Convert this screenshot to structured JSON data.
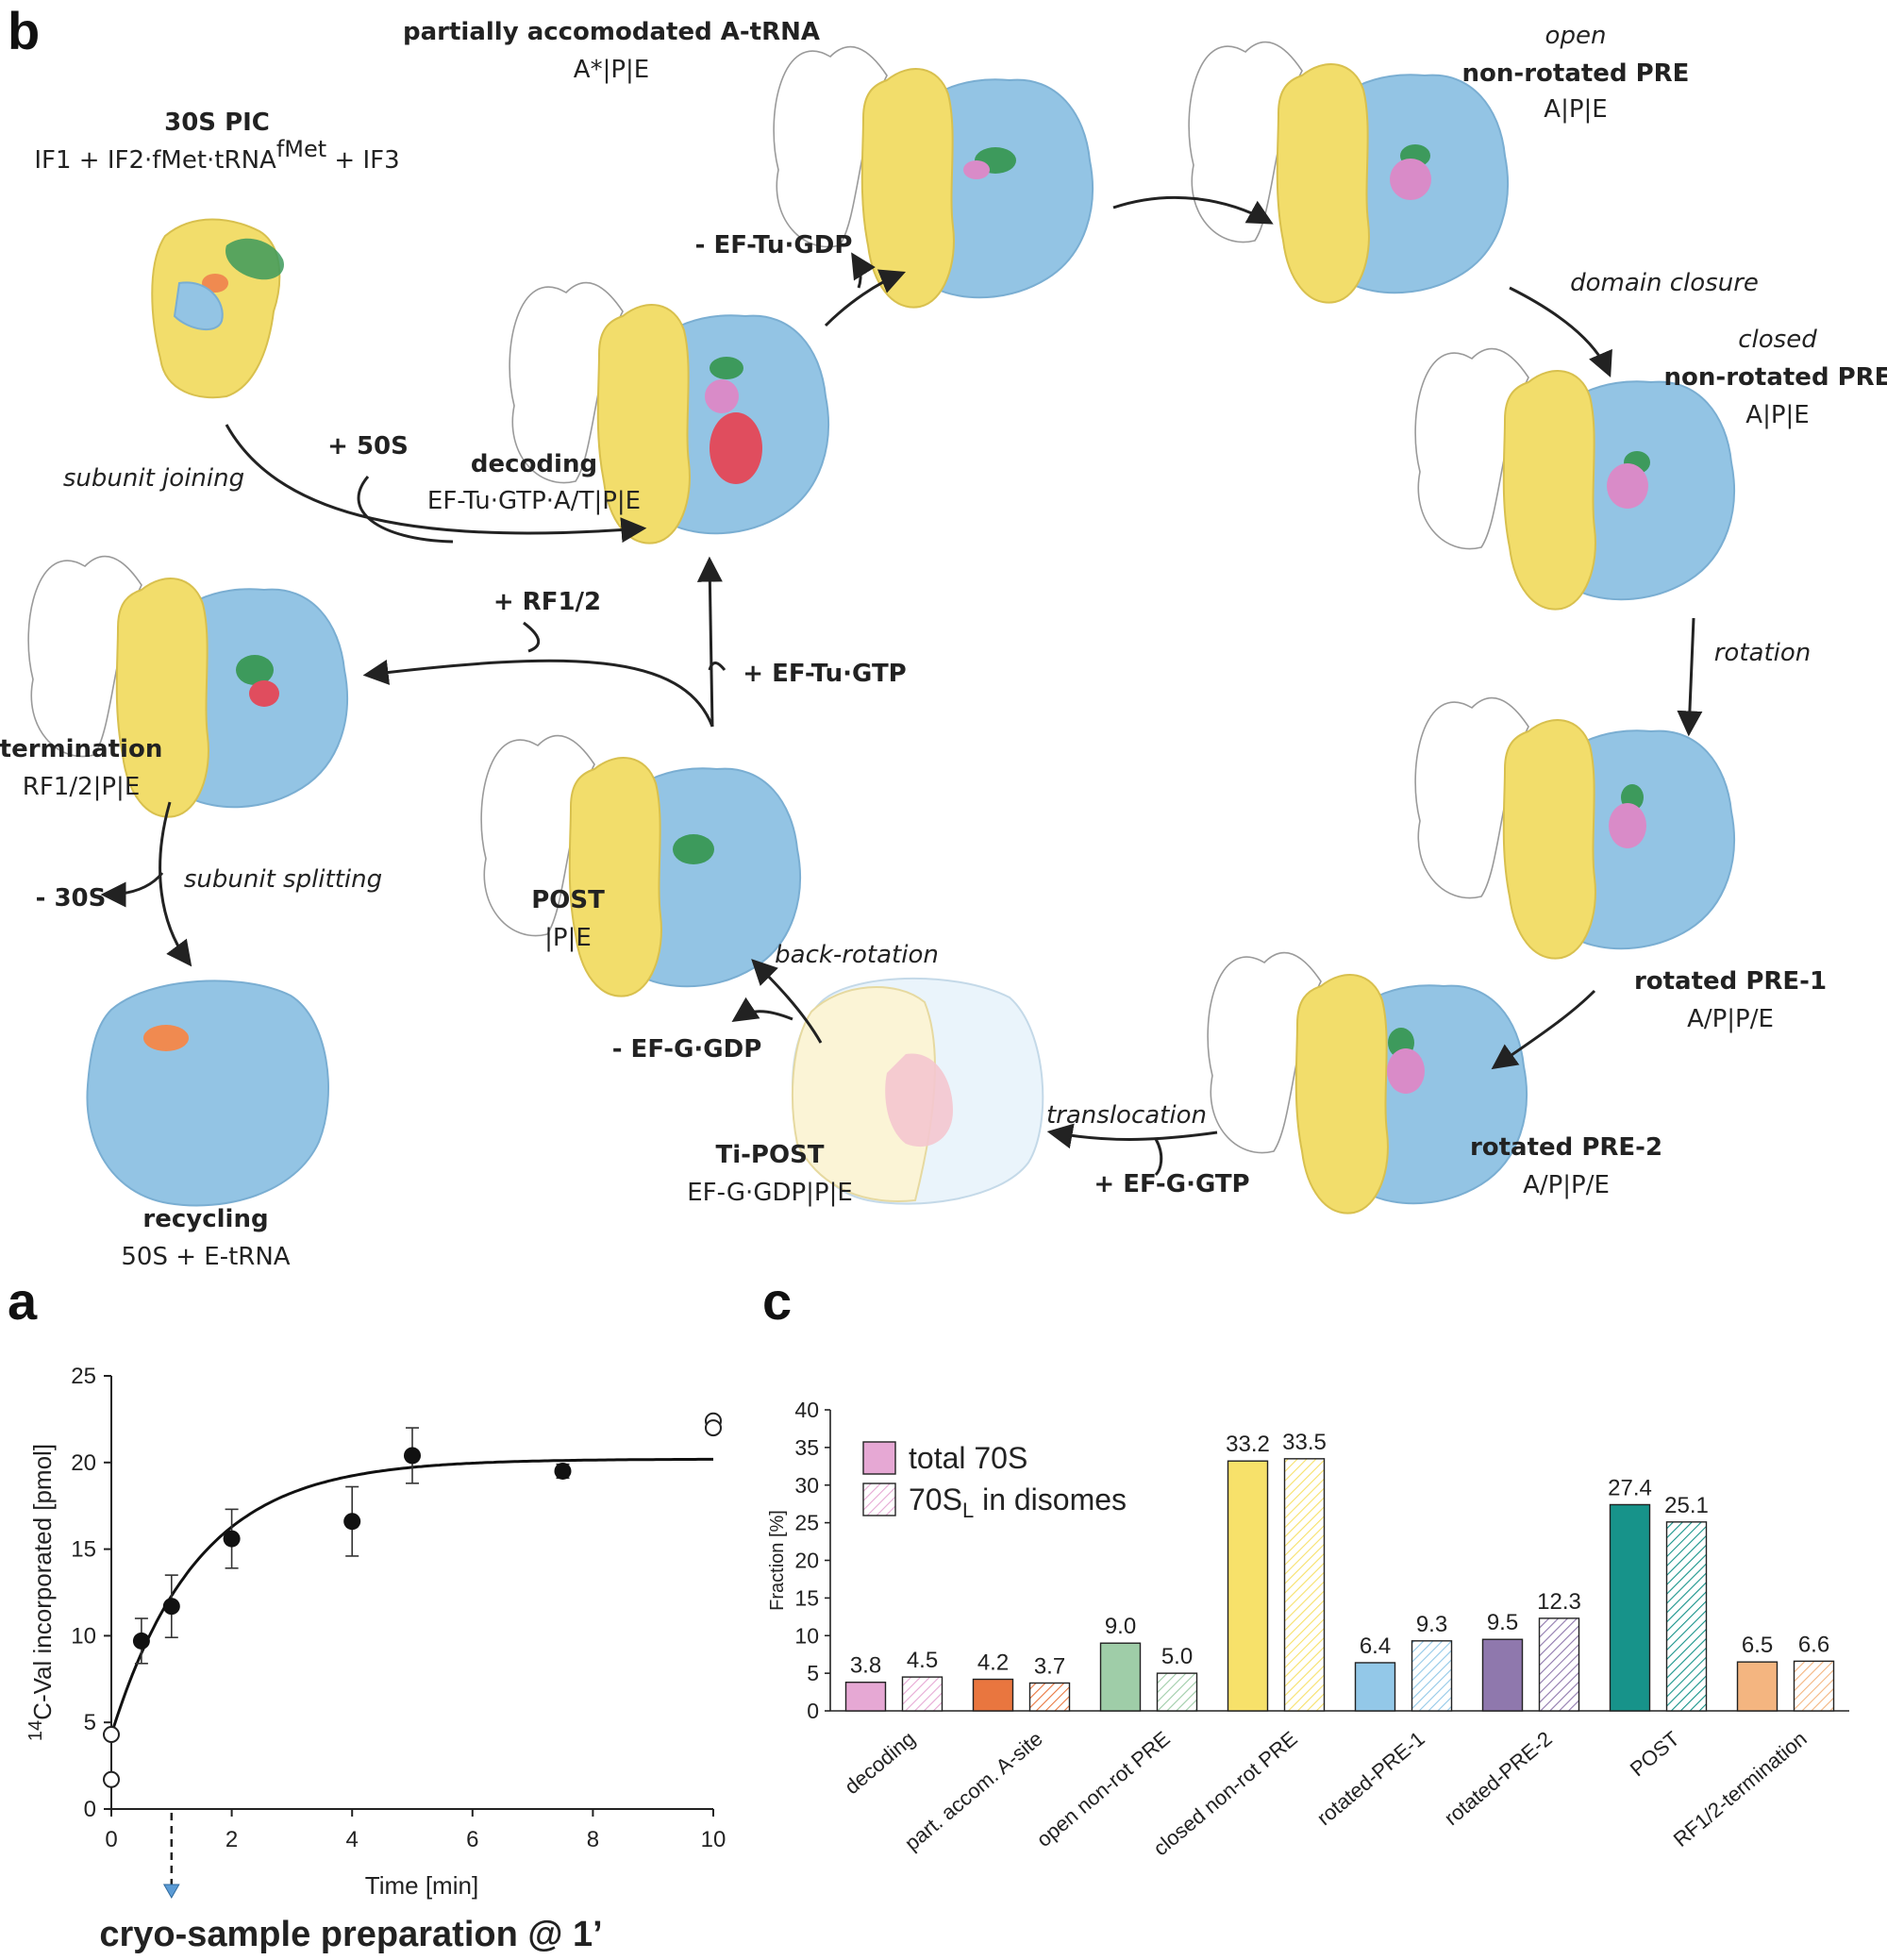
{
  "panel_letters": {
    "a": "a",
    "b": "b",
    "c": "c"
  },
  "colors": {
    "small_subunit_50S": "#f2dd6b",
    "large_subunit": "#93c4e4",
    "trna_p": "#3d9a5c",
    "trna_a": "#d98bc8",
    "ef_tu": "#e04d5e",
    "initiation_factor": "#f08a50",
    "outline": "#9a9a9a"
  },
  "states": {
    "pic": {
      "title": "30S PIC",
      "sub": "IF1 + IF2·fMet·tRNA",
      "sup": "fMet",
      "sub2": " + IF3"
    },
    "decoding": {
      "title": "decoding",
      "sub": "EF-Tu·GTP·A/T|P|E"
    },
    "partial": {
      "title": "partially accomodated A-tRNA",
      "sub": "A*|P|E"
    },
    "open_pre": {
      "qual": "open",
      "title": "non-rotated PRE",
      "sub": "A|P|E"
    },
    "closed_pre": {
      "qual": "closed",
      "title": "non-rotated PRE",
      "sub": "A|P|E"
    },
    "rot1": {
      "title": "rotated PRE-1",
      "sub": "A/P|P/E"
    },
    "rot2": {
      "title": "rotated PRE-2",
      "sub": "A/P|P/E"
    },
    "tipost": {
      "title": "Ti-POST",
      "sub": "EF-G·GDP|P|E"
    },
    "post": {
      "title": "POST",
      "sub": "|P|E"
    },
    "termination": {
      "title": "termination",
      "sub": "RF1/2|P|E"
    },
    "recycling": {
      "title": "recycling",
      "sub": "50S + E-tRNA"
    }
  },
  "transitions": {
    "subunit_joining": "subunit joining",
    "plus_50s": "+ 50S",
    "minus_eftu_gdp": "- EF-Tu·GDP",
    "domain_closure": "domain closure",
    "rotation": "rotation",
    "translocation": "translocation",
    "plus_efg_gtp": "+ EF-G·GTP",
    "minus_efg_gdp": "- EF-G·GDP",
    "back_rotation": "back-rotation",
    "plus_eftu_gtp": "+ EF-Tu·GTP",
    "plus_rf12": "+ RF1/2",
    "subunit_splitting": "subunit splitting",
    "minus_30s": "- 30S"
  },
  "chart_data": [
    {
      "type": "scatter",
      "panel": "a",
      "xlabel": "Time [min]",
      "ylabel_sup": "14",
      "ylabel": "C-Val incorporated [pmol]",
      "xlim": [
        0,
        10
      ],
      "ylim": [
        0,
        25
      ],
      "xticks": [
        0,
        2,
        4,
        6,
        8,
        10
      ],
      "yticks": [
        0,
        5,
        10,
        15,
        20,
        25
      ],
      "filled_points": [
        {
          "x": 0.5,
          "y": 9.7,
          "err": 1.3
        },
        {
          "x": 1,
          "y": 11.7,
          "err": 1.8
        },
        {
          "x": 2,
          "y": 15.6,
          "err": 1.7
        },
        {
          "x": 4,
          "y": 16.6,
          "err": 2.0
        },
        {
          "x": 5,
          "y": 20.4,
          "err": 1.6
        },
        {
          "x": 7.5,
          "y": 19.5,
          "err": 0.4
        }
      ],
      "open_points": [
        {
          "x": 0,
          "y": 4.3
        },
        {
          "x": 0,
          "y": 1.7
        },
        {
          "x": 10,
          "y": 22.4
        },
        {
          "x": 10,
          "y": 22.0
        }
      ],
      "fit": {
        "y0": 4.3,
        "plateau": 20.2,
        "k": 0.7
      },
      "annotation": "cryo-sample preparation @ 1’",
      "annotation_x": 1,
      "marker_color": "#5b9bd5"
    },
    {
      "type": "bar",
      "panel": "c",
      "ylabel": "Fraction [%]",
      "ylim": [
        0,
        40
      ],
      "yticks": [
        0,
        5,
        10,
        15,
        20,
        25,
        30,
        35,
        40
      ],
      "categories": [
        "decoding",
        "part. accom. A-site",
        "open non-rot PRE",
        "closed non-rot PRE",
        "rotated-PRE-1",
        "rotated-PRE-2",
        "POST",
        "RF1/2-termination"
      ],
      "category_colors": [
        "#e6a8d4",
        "#e9763f",
        "#9fcda8",
        "#f7e16a",
        "#93c8e8",
        "#8f78ad",
        "#17938a",
        "#f4b580"
      ],
      "series": [
        {
          "name": "total 70S",
          "values": [
            3.8,
            4.2,
            9.0,
            33.2,
            6.4,
            9.5,
            27.4,
            6.5
          ],
          "fill": "solid"
        },
        {
          "name": "70S",
          "name_sub": "L",
          "name_suffix": " in disomes",
          "values": [
            4.5,
            3.7,
            5.0,
            33.5,
            9.3,
            12.3,
            25.1,
            6.6
          ],
          "fill": "hatched"
        }
      ],
      "value_labels": [
        [
          "3.8",
          "4.2",
          "9.0",
          "33.2",
          "6.4",
          "9.5",
          "27.4",
          "6.5"
        ],
        [
          "4.5",
          "3.7",
          "5.0",
          "33.5",
          "9.3",
          "12.3",
          "25.1",
          "6.6"
        ]
      ],
      "legend": "top-left"
    }
  ]
}
